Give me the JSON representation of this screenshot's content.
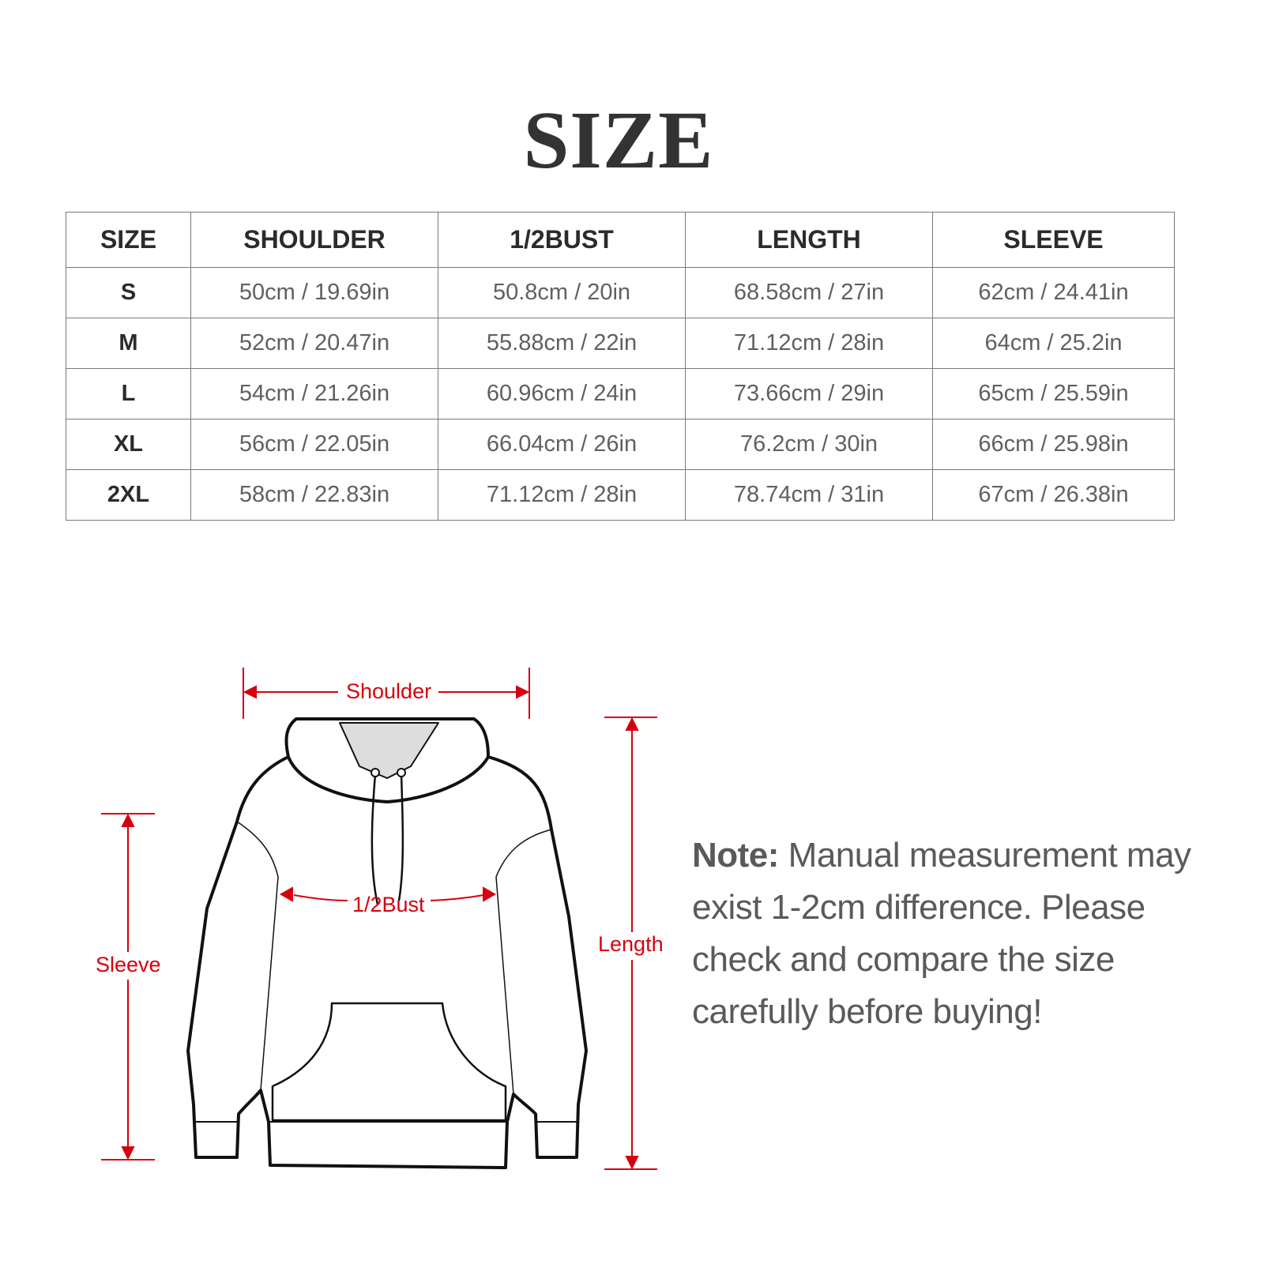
{
  "title": "SIZE",
  "table": {
    "headers": [
      "SIZE",
      "SHOULDER",
      "1/2BUST",
      "LENGTH",
      "SLEEVE"
    ],
    "rows": [
      [
        "S",
        "50cm / 19.69in",
        "50.8cm / 20in",
        "68.58cm / 27in",
        "62cm / 24.41in"
      ],
      [
        "M",
        "52cm / 20.47in",
        "55.88cm / 22in",
        "71.12cm / 28in",
        "64cm / 25.2in"
      ],
      [
        "L",
        "54cm / 21.26in",
        "60.96cm / 24in",
        "73.66cm / 29in",
        "65cm / 25.59in"
      ],
      [
        "XL",
        "56cm / 22.05in",
        "66.04cm / 26in",
        "76.2cm / 30in",
        "66cm / 25.98in"
      ],
      [
        "2XL",
        "58cm / 22.83in",
        "71.12cm / 28in",
        "78.74cm / 31in",
        "67cm / 26.38in"
      ]
    ]
  },
  "diagram": {
    "shoulder_label": "Shoulder",
    "bust_label": "1/2Bust",
    "length_label": "Length",
    "sleeve_label": "Sleeve",
    "measure_color": "#d7000f"
  },
  "note": {
    "label": "Note:",
    "text": " Manual measurement may exist 1-2cm difference. Please check and compare the size carefully before buying!"
  }
}
